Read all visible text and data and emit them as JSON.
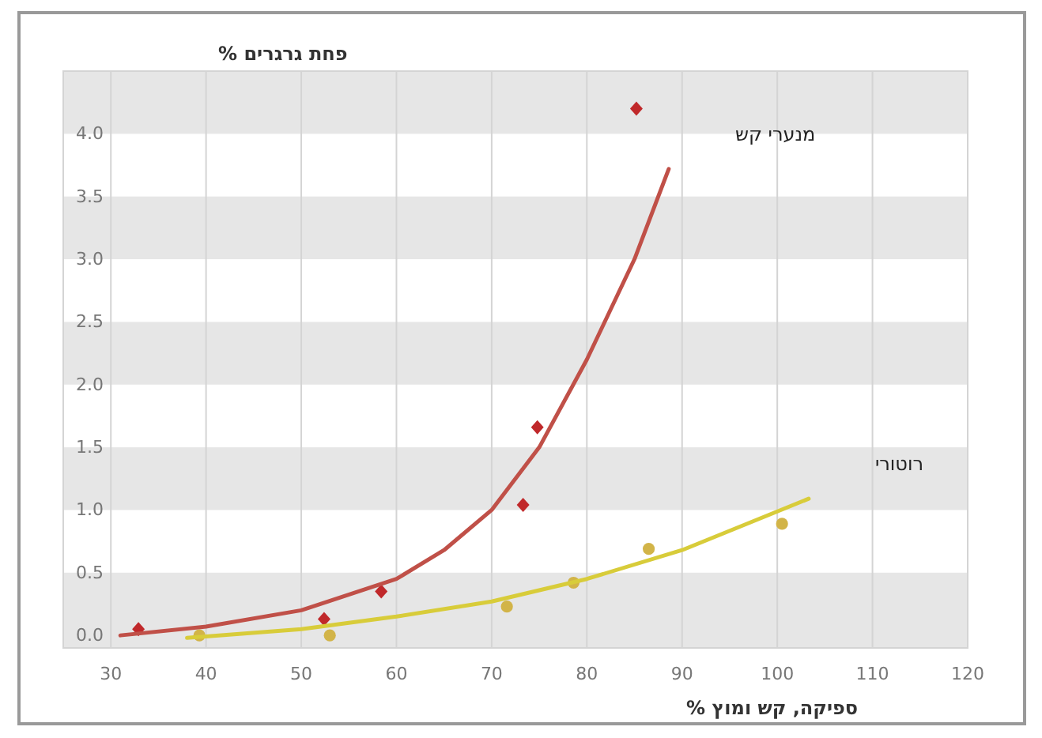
{
  "chart_data": {
    "type": "scatter",
    "title": "פחת גרגרים %",
    "xlabel": "ספיקה, קש ומוץ %",
    "xlim": [
      25,
      120
    ],
    "ylim": [
      -0.1,
      4.5
    ],
    "xticks": [
      30,
      40,
      50,
      60,
      70,
      80,
      90,
      100,
      110,
      120
    ],
    "yticks": [
      {
        "value": 0,
        "label": "0.0"
      },
      {
        "value": 0.5,
        "label": "0.5"
      },
      {
        "value": 1,
        "label": "1.0"
      },
      {
        "value": 1.5,
        "label": "1.5"
      },
      {
        "value": 2,
        "label": "2.0"
      },
      {
        "value": 2.5,
        "label": "2.5"
      },
      {
        "value": 3,
        "label": "3.0"
      },
      {
        "value": 3.5,
        "label": "3.5"
      },
      {
        "value": 4,
        "label": "4.0"
      }
    ],
    "grid": "x",
    "bands": [
      {
        "axis": "y",
        "from": -0.1,
        "to": 0.5,
        "color": "#e6e6e6"
      },
      {
        "axis": "y",
        "from": 1.0,
        "to": 1.5,
        "color": "#e6e6e6"
      },
      {
        "axis": "y",
        "from": 2.0,
        "to": 2.5,
        "color": "#e6e6e6"
      },
      {
        "axis": "y",
        "from": 3.0,
        "to": 3.5,
        "color": "#e6e6e6"
      },
      {
        "axis": "y",
        "from": 4.0,
        "to": 4.5,
        "color": "#e6e6e6"
      }
    ],
    "series": [
      {
        "type": "scatter",
        "marker": "diamond",
        "color": "#c0282a",
        "x": [
          32.9,
          52.4,
          58.4,
          73.3,
          74.8,
          85.2
        ],
        "values": [
          0.05,
          0.13,
          0.35,
          1.04,
          1.66,
          4.2
        ]
      },
      {
        "type": "scatter",
        "marker": "circle",
        "color": "#d2b448",
        "x": [
          39.3,
          53,
          71.6,
          78.6,
          86.5,
          100.5
        ],
        "values": [
          0.0,
          0.0,
          0.23,
          0.42,
          0.69,
          0.89
        ]
      },
      {
        "type": "line",
        "name": "מנערי קש",
        "color": "#c05048",
        "x": [
          31,
          40,
          50,
          60,
          65,
          70,
          75,
          80,
          85,
          88.6
        ],
        "values": [
          0.0,
          0.07,
          0.2,
          0.45,
          0.68,
          1.0,
          1.5,
          2.2,
          3.0,
          3.72
        ]
      },
      {
        "type": "line",
        "name": "רוטורי",
        "color": "#d8cc3a",
        "x": [
          38,
          50,
          60,
          70,
          80,
          90,
          103.3
        ],
        "values": [
          -0.02,
          0.05,
          0.15,
          0.27,
          0.45,
          0.68,
          1.09
        ]
      }
    ]
  }
}
